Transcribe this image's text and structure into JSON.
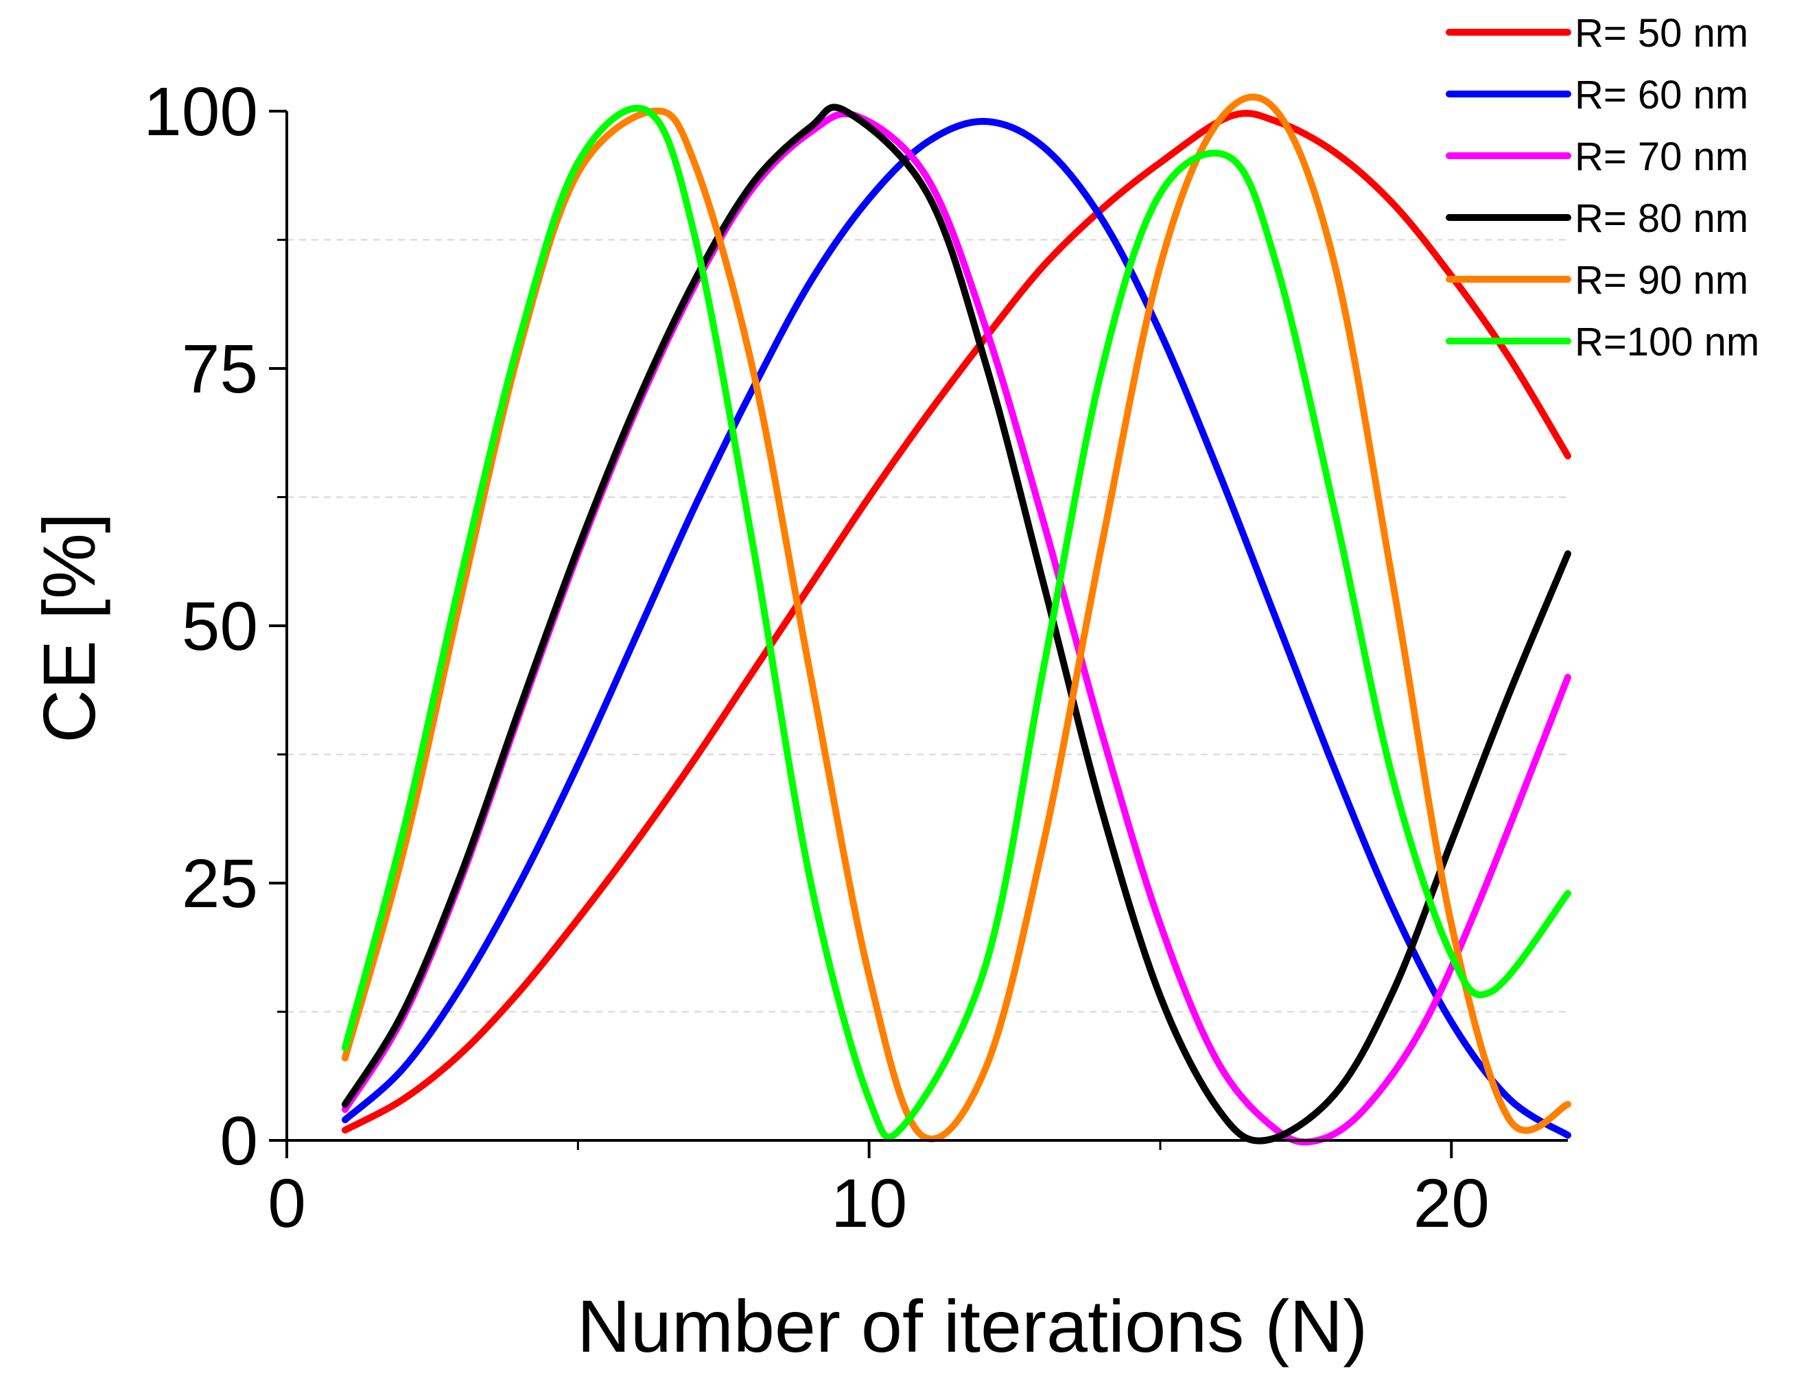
{
  "chart_data": {
    "type": "line",
    "title": "",
    "xlabel": "Number of iterations (N)",
    "ylabel": "CE [%]",
    "xlim": [
      0,
      22
    ],
    "ylim": [
      0,
      100
    ],
    "x_ticks": [
      0,
      10,
      20
    ],
    "y_ticks": [
      0,
      25,
      50,
      75,
      100
    ],
    "x_minor_ticks": [
      5,
      15
    ],
    "y_minor_ticks": [
      12.5,
      37.5,
      62.5,
      87.5
    ],
    "grid": "minor-y dashed",
    "legend_position": "top-right",
    "series": [
      {
        "name": "R= 50 nm",
        "color": "#ff0000",
        "x": [
          1,
          2,
          3,
          4,
          5,
          6,
          7,
          8,
          9,
          10,
          11,
          12,
          13,
          14,
          15,
          16.2,
          17,
          18,
          19,
          20,
          21,
          22
        ],
        "y": [
          1,
          4,
          8.5,
          14.5,
          21.5,
          29,
          37,
          45.5,
          54,
          62.5,
          70.5,
          78,
          85,
          90.5,
          95,
          99.5,
          99,
          96,
          91,
          84,
          76,
          66.5
        ]
      },
      {
        "name": "R= 60 nm",
        "color": "#0000ff",
        "x": [
          1,
          2,
          3,
          4,
          5,
          6,
          7,
          8,
          9,
          10,
          11,
          12,
          13,
          14,
          15,
          16,
          17,
          18,
          19,
          20,
          21,
          22
        ],
        "y": [
          2,
          7,
          15,
          25,
          36.5,
          49,
          61.5,
          73,
          83.5,
          91.5,
          97,
          99,
          96.5,
          89.5,
          78.5,
          65,
          50.5,
          36,
          22.5,
          11.5,
          4,
          0.5
        ]
      },
      {
        "name": "R= 70 nm",
        "color": "#ff00ff",
        "x": [
          1,
          2,
          3,
          4,
          5,
          6,
          7,
          8,
          9,
          9.8,
          11,
          12,
          13,
          14,
          15,
          16,
          17,
          17.7,
          18.5,
          19.5,
          20.5,
          22
        ],
        "y": [
          3,
          12,
          25.5,
          41.5,
          57,
          71,
          83,
          92.5,
          98,
          99.5,
          93.5,
          79,
          60,
          39.5,
          21,
          7.5,
          1,
          0,
          3,
          11,
          23.5,
          45
        ]
      },
      {
        "name": "R= 80 nm",
        "color": "#000000",
        "x": [
          1,
          2,
          3,
          4,
          5,
          6,
          7,
          8,
          9,
          9.6,
          11,
          12,
          13,
          14,
          15,
          16,
          16.8,
          18,
          19,
          20,
          21,
          22
        ],
        "y": [
          3.5,
          12.5,
          26,
          42,
          57.5,
          71.5,
          83.5,
          93,
          98.5,
          100,
          92,
          75.5,
          54,
          32,
          14,
          3,
          0,
          4.5,
          14.5,
          29,
          43.5,
          57
        ]
      },
      {
        "name": "R= 90 nm",
        "color": "#ff8000",
        "x": [
          1,
          2,
          3,
          4,
          5,
          6.3,
          7,
          8,
          9,
          10,
          10.9,
          12,
          13,
          14,
          15,
          16,
          17,
          18,
          19,
          20,
          21,
          22
        ],
        "y": [
          8,
          28,
          53,
          77,
          94,
          100,
          95,
          75,
          45,
          16,
          0.5,
          7,
          29,
          58,
          85,
          99,
          100,
          85,
          54,
          21,
          2,
          3.5
        ]
      },
      {
        "name": "R=100 nm",
        "color": "#00ff00",
        "x": [
          1,
          2,
          3,
          4,
          5,
          6.2,
          7,
          8,
          9,
          10,
          10.6,
          12,
          13,
          14,
          15,
          16.2,
          17,
          18,
          19,
          20,
          20.7,
          22
        ],
        "y": [
          9,
          30,
          55,
          78,
          95,
          100,
          88,
          58,
          25,
          4,
          1.5,
          17,
          46,
          75,
          92,
          95.5,
          85,
          61,
          35,
          18,
          14.5,
          24
        ]
      }
    ]
  }
}
